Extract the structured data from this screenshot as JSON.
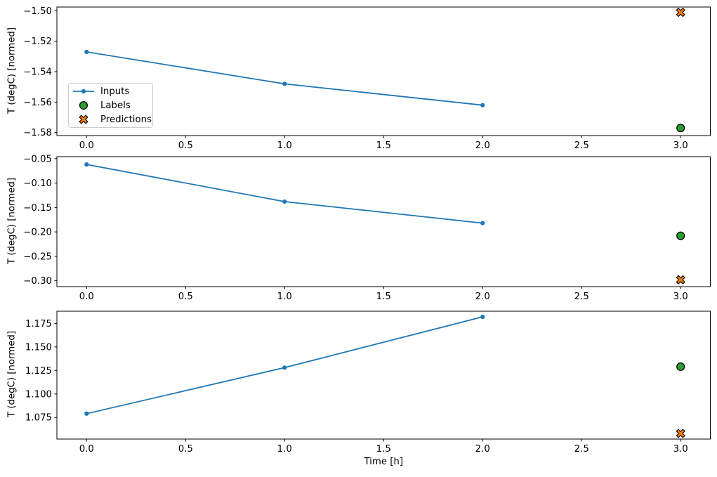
{
  "chart_data": {
    "type": "line",
    "title": "",
    "grid": false,
    "shared_x": {
      "xlabel": "Time [h]",
      "xlim": [
        -0.15,
        3.15
      ],
      "xticks": [
        {
          "v": 0.0,
          "label": "0.0"
        },
        {
          "v": 0.5,
          "label": "0.5"
        },
        {
          "v": 1.0,
          "label": "1.0"
        },
        {
          "v": 1.5,
          "label": "1.5"
        },
        {
          "v": 2.0,
          "label": "2.0"
        },
        {
          "v": 2.5,
          "label": "2.5"
        },
        {
          "v": 3.0,
          "label": "3.0"
        }
      ]
    },
    "colors": {
      "inputs": "#1f77b4",
      "labels_fill": "#2ca02c",
      "predictions_fill": "#ff7f0e",
      "marker_edge": "#000000",
      "spine": "#000000",
      "legend_border": "#cccccc"
    },
    "legend": {
      "visible_on_subplot": 0,
      "location": "center left",
      "items": [
        {
          "label": "Inputs",
          "marker": "line-dot",
          "color": "#1f77b4"
        },
        {
          "label": "Labels",
          "marker": "circle",
          "color": "#2ca02c"
        },
        {
          "label": "Predictions",
          "marker": "x-filled",
          "color": "#ff7f0e"
        }
      ]
    },
    "subplots": [
      {
        "ylabel": "T (degC) [normed]",
        "ylim": [
          -1.582,
          -1.4975
        ],
        "yticks": [
          {
            "v": -1.5,
            "label": "−1.50"
          },
          {
            "v": -1.52,
            "label": "−1.52"
          },
          {
            "v": -1.54,
            "label": "−1.54"
          },
          {
            "v": -1.56,
            "label": "−1.56"
          },
          {
            "v": -1.58,
            "label": "−1.58"
          }
        ],
        "series": [
          {
            "name": "Inputs",
            "kind": "line",
            "x": [
              0,
              1,
              2
            ],
            "y": [
              -1.527,
              -1.548,
              -1.562
            ]
          },
          {
            "name": "Labels",
            "kind": "scatter-circle",
            "x": [
              3
            ],
            "y": [
              -1.577
            ]
          },
          {
            "name": "Predictions",
            "kind": "scatter-x",
            "x": [
              3
            ],
            "y": [
              -1.501
            ]
          }
        ]
      },
      {
        "ylabel": "T (degC) [normed]",
        "ylim": [
          -0.312,
          -0.046
        ],
        "yticks": [
          {
            "v": -0.05,
            "label": "−0.05"
          },
          {
            "v": -0.1,
            "label": "−0.10"
          },
          {
            "v": -0.15,
            "label": "−0.15"
          },
          {
            "v": -0.2,
            "label": "−0.20"
          },
          {
            "v": -0.25,
            "label": "−0.25"
          },
          {
            "v": -0.3,
            "label": "−0.30"
          }
        ],
        "series": [
          {
            "name": "Inputs",
            "kind": "line",
            "x": [
              0,
              1,
              2
            ],
            "y": [
              -0.062,
              -0.138,
              -0.182
            ]
          },
          {
            "name": "Labels",
            "kind": "scatter-circle",
            "x": [
              3
            ],
            "y": [
              -0.208
            ]
          },
          {
            "name": "Predictions",
            "kind": "scatter-x",
            "x": [
              3
            ],
            "y": [
              -0.298
            ]
          }
        ]
      },
      {
        "ylabel": "T (degC) [normed]",
        "ylim": [
          1.052,
          1.188
        ],
        "yticks": [
          {
            "v": 1.175,
            "label": "1.175"
          },
          {
            "v": 1.15,
            "label": "1.150"
          },
          {
            "v": 1.125,
            "label": "1.125"
          },
          {
            "v": 1.1,
            "label": "1.100"
          },
          {
            "v": 1.075,
            "label": "1.075"
          }
        ],
        "series": [
          {
            "name": "Inputs",
            "kind": "line",
            "x": [
              0,
              1,
              2
            ],
            "y": [
              1.079,
              1.128,
              1.182
            ]
          },
          {
            "name": "Labels",
            "kind": "scatter-circle",
            "x": [
              3
            ],
            "y": [
              1.129
            ]
          },
          {
            "name": "Predictions",
            "kind": "scatter-x",
            "x": [
              3
            ],
            "y": [
              1.058
            ]
          }
        ]
      }
    ]
  }
}
